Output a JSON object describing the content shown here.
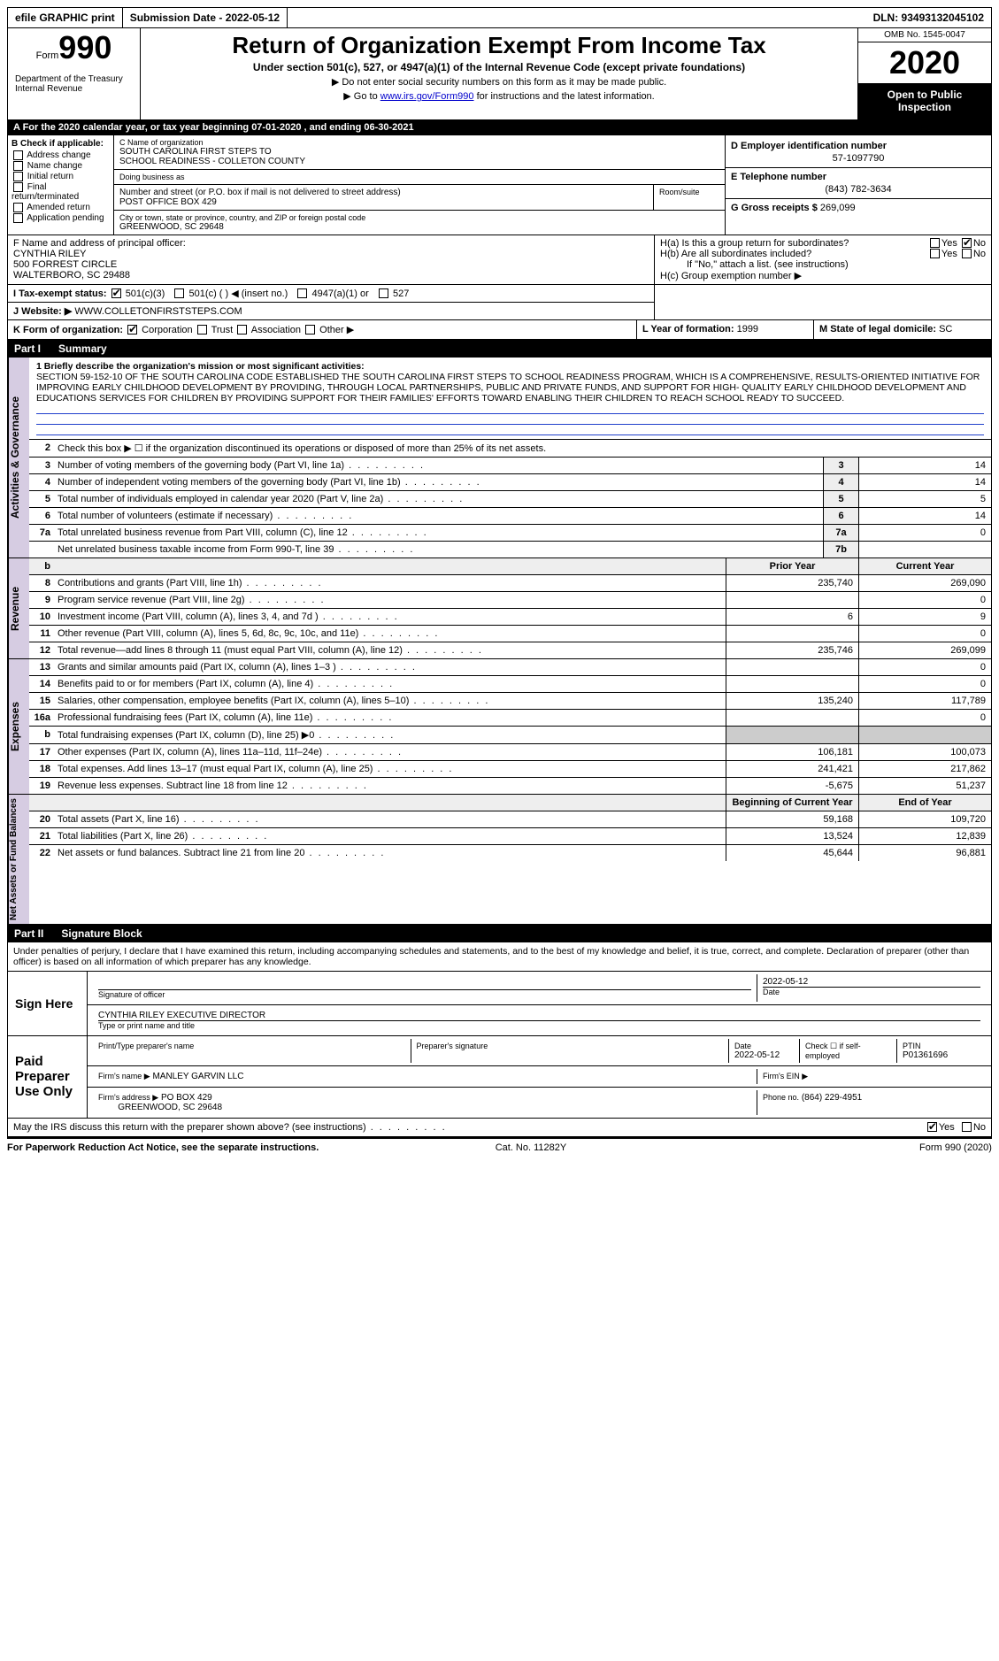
{
  "top": {
    "efile": "efile GRAPHIC print",
    "submission_label": "Submission Date - 2022-05-12",
    "dln_label": "DLN: 93493132045102"
  },
  "header": {
    "form_word": "Form",
    "form_num": "990",
    "dept": "Department of the Treasury\nInternal Revenue",
    "title": "Return of Organization Exempt From Income Tax",
    "subtitle": "Under section 501(c), 527, or 4947(a)(1) of the Internal Revenue Code (except private foundations)",
    "note1": "▶ Do not enter social security numbers on this form as it may be made public.",
    "note2_pre": "▶ Go to ",
    "note2_link": "www.irs.gov/Form990",
    "note2_post": " for instructions and the latest information.",
    "omb": "OMB No. 1545-0047",
    "year": "2020",
    "open": "Open to Public Inspection"
  },
  "rowA": "A   For the 2020 calendar year, or tax year beginning 07-01-2020   , and ending 06-30-2021",
  "boxB": {
    "title": "B Check if applicable:",
    "opts": [
      "Address change",
      "Name change",
      "Initial return",
      "Final return/terminated",
      "Amended return",
      "Application pending"
    ]
  },
  "boxC": {
    "name_label": "C Name of organization",
    "name": "SOUTH CAROLINA FIRST STEPS TO\nSCHOOL READINESS - COLLETON COUNTY",
    "dba_label": "Doing business as",
    "addr_label": "Number and street (or P.O. box if mail is not delivered to street address)",
    "addr": "POST OFFICE BOX 429",
    "room_label": "Room/suite",
    "city_label": "City or town, state or province, country, and ZIP or foreign postal code",
    "city": "GREENWOOD, SC  29648"
  },
  "boxD": {
    "label": "D Employer identification number",
    "value": "57-1097790"
  },
  "boxE": {
    "label": "E Telephone number",
    "value": "(843) 782-3634"
  },
  "boxG": {
    "label": "G Gross receipts $",
    "value": "269,099"
  },
  "boxF": {
    "label": "F  Name and address of principal officer:",
    "name": "CYNTHIA RILEY",
    "addr1": "500 FORREST CIRCLE",
    "addr2": "WALTERBORO, SC  29488"
  },
  "boxH": {
    "a_label": "H(a)  Is this a group return for subordinates?",
    "a_yes": "Yes",
    "a_no": "No",
    "b_label": "H(b)  Are all subordinates included?",
    "b_note": "If \"No,\" attach a list. (see instructions)",
    "c_label": "H(c)  Group exemption number ▶"
  },
  "rowI": {
    "label": "I   Tax-exempt status:",
    "o501c3": "501(c)(3)",
    "o501c": "501(c) (  ) ◀ (insert no.)",
    "o4947": "4947(a)(1) or",
    "o527": "527"
  },
  "rowJ": {
    "label": "J   Website: ▶",
    "value": "WWW.COLLETONFIRSTSTEPS.COM"
  },
  "rowK": {
    "label": "K Form of organization:",
    "corp": "Corporation",
    "trust": "Trust",
    "assoc": "Association",
    "other": "Other ▶"
  },
  "rowL": {
    "label": "L Year of formation:",
    "value": "1999"
  },
  "rowM": {
    "label": "M State of legal domicile:",
    "value": "SC"
  },
  "part1": {
    "header_num": "Part I",
    "header_title": "Summary",
    "rot_ag": "Activities & Governance",
    "rot_rev": "Revenue",
    "rot_exp": "Expenses",
    "rot_net": "Net Assets or Fund Balances",
    "l1_label": "1   Briefly describe the organization's mission or most significant activities:",
    "mission": "SECTION 59-152-10 OF THE SOUTH CAROLINA CODE ESTABLISHED THE SOUTH CAROLINA FIRST STEPS TO SCHOOL READINESS PROGRAM, WHICH IS A COMPREHENSIVE, RESULTS-ORIENTED INITIATIVE FOR IMPROVING EARLY CHILDHOOD DEVELOPMENT BY PROVIDING, THROUGH LOCAL PARTNERSHIPS, PUBLIC AND PRIVATE FUNDS, AND SUPPORT FOR HIGH- QUALITY EARLY CHILDHOOD DEVELOPMENT AND EDUCATIONS SERVICES FOR CHILDREN BY PROVIDING SUPPORT FOR THEIR FAMILIES' EFFORTS TOWARD ENABLING THEIR CHILDREN TO REACH SCHOOL READY TO SUCCEED.",
    "l2": "Check this box ▶ ☐  if the organization discontinued its operations or disposed of more than 25% of its net assets.",
    "rows": [
      {
        "n": "3",
        "d": "Number of voting members of the governing body (Part VI, line 1a)",
        "c": "3",
        "v": "14"
      },
      {
        "n": "4",
        "d": "Number of independent voting members of the governing body (Part VI, line 1b)",
        "c": "4",
        "v": "14"
      },
      {
        "n": "5",
        "d": "Total number of individuals employed in calendar year 2020 (Part V, line 2a)",
        "c": "5",
        "v": "5"
      },
      {
        "n": "6",
        "d": "Total number of volunteers (estimate if necessary)",
        "c": "6",
        "v": "14"
      },
      {
        "n": "7a",
        "d": "Total unrelated business revenue from Part VIII, column (C), line 12",
        "c": "7a",
        "v": "0"
      },
      {
        "n": "",
        "d": "Net unrelated business taxable income from Form 990-T, line 39",
        "c": "7b",
        "v": ""
      }
    ],
    "hdr_b": "b",
    "hdr_prior": "Prior Year",
    "hdr_curr": "Current Year",
    "rev": [
      {
        "n": "8",
        "d": "Contributions and grants (Part VIII, line 1h)",
        "p": "235,740",
        "c": "269,090"
      },
      {
        "n": "9",
        "d": "Program service revenue (Part VIII, line 2g)",
        "p": "",
        "c": "0"
      },
      {
        "n": "10",
        "d": "Investment income (Part VIII, column (A), lines 3, 4, and 7d )",
        "p": "6",
        "c": "9"
      },
      {
        "n": "11",
        "d": "Other revenue (Part VIII, column (A), lines 5, 6d, 8c, 9c, 10c, and 11e)",
        "p": "",
        "c": "0"
      },
      {
        "n": "12",
        "d": "Total revenue—add lines 8 through 11 (must equal Part VIII, column (A), line 12)",
        "p": "235,746",
        "c": "269,099"
      }
    ],
    "exp": [
      {
        "n": "13",
        "d": "Grants and similar amounts paid (Part IX, column (A), lines 1–3 )",
        "p": "",
        "c": "0"
      },
      {
        "n": "14",
        "d": "Benefits paid to or for members (Part IX, column (A), line 4)",
        "p": "",
        "c": "0"
      },
      {
        "n": "15",
        "d": "Salaries, other compensation, employee benefits (Part IX, column (A), lines 5–10)",
        "p": "135,240",
        "c": "117,789"
      },
      {
        "n": "16a",
        "d": "Professional fundraising fees (Part IX, column (A), line 11e)",
        "p": "",
        "c": "0"
      },
      {
        "n": "b",
        "d": "Total fundraising expenses (Part IX, column (D), line 25) ▶0",
        "p": "SHADE",
        "c": "SHADE"
      },
      {
        "n": "17",
        "d": "Other expenses (Part IX, column (A), lines 11a–11d, 11f–24e)",
        "p": "106,181",
        "c": "100,073"
      },
      {
        "n": "18",
        "d": "Total expenses. Add lines 13–17 (must equal Part IX, column (A), line 25)",
        "p": "241,421",
        "c": "217,862"
      },
      {
        "n": "19",
        "d": "Revenue less expenses. Subtract line 18 from line 12",
        "p": "-5,675",
        "c": "51,237"
      }
    ],
    "hdr_boy": "Beginning of Current Year",
    "hdr_eoy": "End of Year",
    "net": [
      {
        "n": "20",
        "d": "Total assets (Part X, line 16)",
        "p": "59,168",
        "c": "109,720"
      },
      {
        "n": "21",
        "d": "Total liabilities (Part X, line 26)",
        "p": "13,524",
        "c": "12,839"
      },
      {
        "n": "22",
        "d": "Net assets or fund balances. Subtract line 21 from line 20",
        "p": "45,644",
        "c": "96,881"
      }
    ]
  },
  "part2": {
    "header_num": "Part II",
    "header_title": "Signature Block",
    "decl": "Under penalties of perjury, I declare that I have examined this return, including accompanying schedules and statements, and to the best of my knowledge and belief, it is true, correct, and complete. Declaration of preparer (other than officer) is based on all information of which preparer has any knowledge.",
    "sign_here": "Sign Here",
    "sig_officer": "Signature of officer",
    "sig_date": "2022-05-12",
    "date_label": "Date",
    "typed": "CYNTHIA RILEY  EXECUTIVE DIRECTOR",
    "typed_label": "Type or print name and title",
    "paid": "Paid Preparer Use Only",
    "prep_name_label": "Print/Type preparer's name",
    "prep_sig_label": "Preparer's signature",
    "prep_date_label": "Date",
    "prep_date": "2022-05-12",
    "check_se": "Check ☐ if self-employed",
    "ptin_label": "PTIN",
    "ptin": "P01361696",
    "firm_name_label": "Firm's name    ▶",
    "firm_name": "MANLEY GARVIN LLC",
    "firm_ein_label": "Firm's EIN ▶",
    "firm_addr_label": "Firm's address ▶",
    "firm_addr1": "PO BOX 429",
    "firm_addr2": "GREENWOOD, SC  29648",
    "phone_label": "Phone no.",
    "phone": "(864) 229-4951",
    "discuss": "May the IRS discuss this return with the preparer shown above? (see instructions)",
    "yes": "Yes",
    "no": "No"
  },
  "footer": {
    "left": "For Paperwork Reduction Act Notice, see the separate instructions.",
    "mid": "Cat. No. 11282Y",
    "right": "Form 990 (2020)"
  }
}
